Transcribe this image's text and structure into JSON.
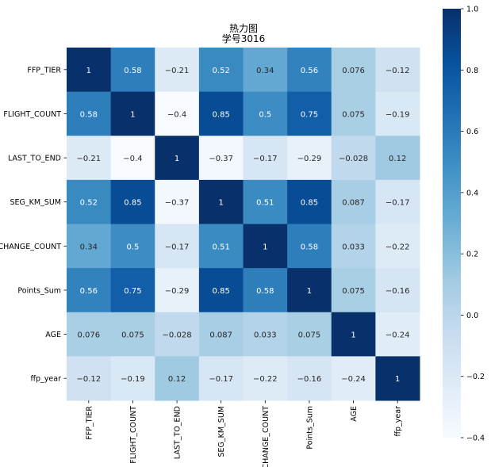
{
  "chart_data": {
    "type": "heatmap",
    "title": "热力图",
    "subtitle": "学号3016",
    "xlabel": "",
    "ylabel": "",
    "labels": [
      "FFP_TIER",
      "FLIGHT_COUNT",
      "LAST_TO_END",
      "SEG_KM_SUM",
      "EXCHANGE_COUNT",
      "Points_Sum",
      "AGE",
      "ffp_year"
    ],
    "values": [
      [
        1,
        0.58,
        -0.21,
        0.52,
        0.34,
        0.56,
        0.076,
        -0.12
      ],
      [
        0.58,
        1,
        -0.4,
        0.85,
        0.5,
        0.75,
        0.075,
        -0.19
      ],
      [
        -0.21,
        -0.4,
        1,
        -0.37,
        -0.17,
        -0.29,
        -0.028,
        0.12
      ],
      [
        0.52,
        0.85,
        -0.37,
        1,
        0.51,
        0.85,
        0.087,
        -0.17
      ],
      [
        0.34,
        0.5,
        -0.17,
        0.51,
        1,
        0.58,
        0.033,
        -0.22
      ],
      [
        0.56,
        0.75,
        -0.29,
        0.85,
        0.58,
        1,
        0.075,
        -0.16
      ],
      [
        0.076,
        0.075,
        -0.028,
        0.087,
        0.033,
        0.075,
        1,
        -0.24
      ],
      [
        -0.12,
        -0.19,
        0.12,
        -0.17,
        -0.22,
        -0.16,
        -0.24,
        1
      ]
    ],
    "display": [
      [
        "1",
        "0.58",
        "−0.21",
        "0.52",
        "0.34",
        "0.56",
        "0.076",
        "−0.12"
      ],
      [
        "0.58",
        "1",
        "−0.4",
        "0.85",
        "0.5",
        "0.75",
        "0.075",
        "−0.19"
      ],
      [
        "−0.21",
        "−0.4",
        "1",
        "−0.37",
        "−0.17",
        "−0.29",
        "−0.028",
        "0.12"
      ],
      [
        "0.52",
        "0.85",
        "−0.37",
        "1",
        "0.51",
        "0.85",
        "0.087",
        "−0.17"
      ],
      [
        "0.34",
        "0.5",
        "−0.17",
        "0.51",
        "1",
        "0.58",
        "0.033",
        "−0.22"
      ],
      [
        "0.56",
        "0.75",
        "−0.29",
        "0.85",
        "0.58",
        "1",
        "0.075",
        "−0.16"
      ],
      [
        "0.076",
        "0.075",
        "−0.028",
        "0.087",
        "0.033",
        "0.075",
        "1",
        "−0.24"
      ],
      [
        "−0.12",
        "−0.19",
        "0.12",
        "−0.17",
        "−0.22",
        "−0.16",
        "−0.24",
        "1"
      ]
    ],
    "colormap": "Blues",
    "color_stops": [
      "#f7fbff",
      "#deebf7",
      "#c6dbef",
      "#9ecae1",
      "#6baed6",
      "#4292c6",
      "#2171b5",
      "#08519c",
      "#08306b"
    ],
    "vmin": -0.4,
    "vmax": 1.0,
    "colorbar": {
      "ticks": [
        1.0,
        0.8,
        0.6,
        0.4,
        0.2,
        0.0,
        -0.2,
        -0.4
      ],
      "tick_labels": [
        "1.0",
        "0.8",
        "0.6",
        "0.4",
        "0.2",
        "0.0",
        "−0.2",
        "−0.4"
      ],
      "placement": "right"
    },
    "grid": false
  }
}
